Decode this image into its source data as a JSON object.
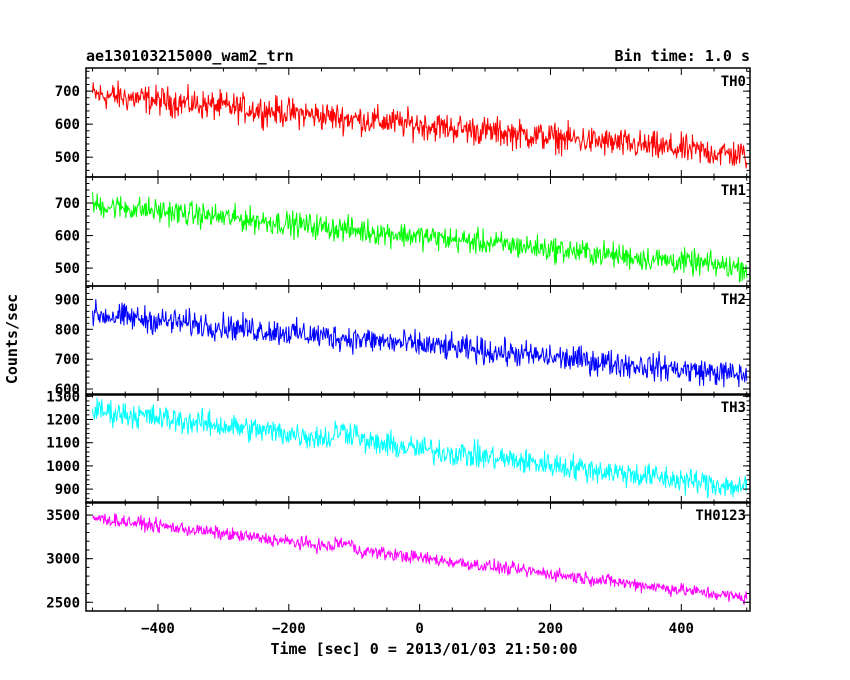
{
  "title_left": "ae130103215000_wam2_trn",
  "title_right": "Bin time: 1.0 s",
  "chart_data": {
    "type": "line",
    "xlabel": "Time [sec] 0 = 2013/01/03 21:50:00",
    "ylabel": "Counts/sec",
    "xlim": [
      -510,
      505
    ],
    "x_ticks": [
      -400,
      -200,
      0,
      200,
      400
    ],
    "grid": false,
    "panels": [
      {
        "name": "TH0",
        "color": "#ff0000",
        "ylim": [
          440,
          770
        ],
        "y_ticks": [
          500,
          600,
          700
        ],
        "start": 690,
        "end": 505,
        "noise": 38
      },
      {
        "name": "TH1",
        "color": "#00ff00",
        "ylim": [
          445,
          780
        ],
        "y_ticks": [
          500,
          600,
          700
        ],
        "start": 695,
        "end": 500,
        "noise": 33
      },
      {
        "name": "TH2",
        "color": "#0000ff",
        "ylim": [
          580,
          945
        ],
        "y_ticks": [
          600,
          700,
          800,
          900
        ],
        "start": 850,
        "end": 645,
        "noise": 38
      },
      {
        "name": "TH3",
        "color": "#00ffff",
        "ylim": [
          840,
          1310
        ],
        "y_ticks": [
          900,
          1000,
          1100,
          1200,
          1300
        ],
        "start": 1240,
        "end": 905,
        "noise": 48
      },
      {
        "name": "TH0123",
        "color": "#ff00ff",
        "ylim": [
          2400,
          3650
        ],
        "y_ticks": [
          2500,
          3000,
          3500
        ],
        "start": 3470,
        "end": 2550,
        "noise": 65
      }
    ]
  }
}
